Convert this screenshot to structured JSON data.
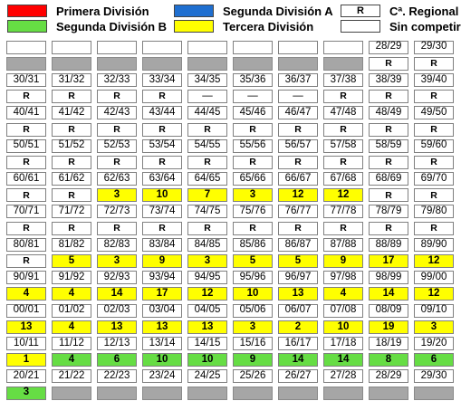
{
  "legend": {
    "primera": {
      "label": "Primera División",
      "color": "#ff0000"
    },
    "segunda_a": {
      "label": "Segunda División A",
      "color": "#1f6fd0"
    },
    "regional": {
      "label": "Cª. Regional",
      "swatch_text": "R"
    },
    "segunda_b": {
      "label": "Segunda División B",
      "color": "#66dd44"
    },
    "tercera": {
      "label": "Tercera División",
      "color": "#ffff00"
    },
    "sin_competir": {
      "label": "Sin competir"
    }
  },
  "rows": [
    [
      {
        "t": "",
        "c": "w"
      },
      {
        "t": "",
        "c": "w"
      },
      {
        "t": "",
        "c": "w"
      },
      {
        "t": "",
        "c": "w"
      },
      {
        "t": "",
        "c": "w"
      },
      {
        "t": "",
        "c": "w"
      },
      {
        "t": "",
        "c": "w"
      },
      {
        "t": "",
        "c": "w"
      },
      {
        "t": "28/29",
        "c": "w"
      },
      {
        "t": "29/30",
        "c": "w"
      }
    ],
    [
      {
        "t": "",
        "c": "g"
      },
      {
        "t": "",
        "c": "g"
      },
      {
        "t": "",
        "c": "g"
      },
      {
        "t": "",
        "c": "g"
      },
      {
        "t": "",
        "c": "g"
      },
      {
        "t": "",
        "c": "g"
      },
      {
        "t": "",
        "c": "g"
      },
      {
        "t": "",
        "c": "g"
      },
      {
        "t": "R",
        "c": "r"
      },
      {
        "t": "R",
        "c": "r"
      }
    ],
    [
      {
        "t": "30/31",
        "c": "w"
      },
      {
        "t": "31/32",
        "c": "w"
      },
      {
        "t": "32/33",
        "c": "w"
      },
      {
        "t": "33/34",
        "c": "w"
      },
      {
        "t": "34/35",
        "c": "w"
      },
      {
        "t": "35/36",
        "c": "w"
      },
      {
        "t": "36/37",
        "c": "w"
      },
      {
        "t": "37/38",
        "c": "w"
      },
      {
        "t": "38/39",
        "c": "w"
      },
      {
        "t": "39/40",
        "c": "w"
      }
    ],
    [
      {
        "t": "R",
        "c": "r"
      },
      {
        "t": "R",
        "c": "r"
      },
      {
        "t": "R",
        "c": "r"
      },
      {
        "t": "R",
        "c": "r"
      },
      {
        "t": "—",
        "c": "w"
      },
      {
        "t": "—",
        "c": "w"
      },
      {
        "t": "—",
        "c": "w"
      },
      {
        "t": "R",
        "c": "r"
      },
      {
        "t": "R",
        "c": "r"
      },
      {
        "t": "R",
        "c": "r"
      }
    ],
    [
      {
        "t": "40/41",
        "c": "w"
      },
      {
        "t": "41/42",
        "c": "w"
      },
      {
        "t": "42/43",
        "c": "w"
      },
      {
        "t": "43/44",
        "c": "w"
      },
      {
        "t": "44/45",
        "c": "w"
      },
      {
        "t": "45/46",
        "c": "w"
      },
      {
        "t": "46/47",
        "c": "w"
      },
      {
        "t": "47/48",
        "c": "w"
      },
      {
        "t": "48/49",
        "c": "w"
      },
      {
        "t": "49/50",
        "c": "w"
      }
    ],
    [
      {
        "t": "R",
        "c": "r"
      },
      {
        "t": "R",
        "c": "r"
      },
      {
        "t": "R",
        "c": "r"
      },
      {
        "t": "R",
        "c": "r"
      },
      {
        "t": "R",
        "c": "r"
      },
      {
        "t": "R",
        "c": "r"
      },
      {
        "t": "R",
        "c": "r"
      },
      {
        "t": "R",
        "c": "r"
      },
      {
        "t": "R",
        "c": "r"
      },
      {
        "t": "R",
        "c": "r"
      }
    ],
    [
      {
        "t": "50/51",
        "c": "w"
      },
      {
        "t": "51/52",
        "c": "w"
      },
      {
        "t": "52/53",
        "c": "w"
      },
      {
        "t": "53/54",
        "c": "w"
      },
      {
        "t": "54/55",
        "c": "w"
      },
      {
        "t": "55/56",
        "c": "w"
      },
      {
        "t": "56/57",
        "c": "w"
      },
      {
        "t": "57/58",
        "c": "w"
      },
      {
        "t": "58/59",
        "c": "w"
      },
      {
        "t": "59/60",
        "c": "w"
      }
    ],
    [
      {
        "t": "R",
        "c": "r"
      },
      {
        "t": "R",
        "c": "r"
      },
      {
        "t": "R",
        "c": "r"
      },
      {
        "t": "R",
        "c": "r"
      },
      {
        "t": "R",
        "c": "r"
      },
      {
        "t": "R",
        "c": "r"
      },
      {
        "t": "R",
        "c": "r"
      },
      {
        "t": "R",
        "c": "r"
      },
      {
        "t": "R",
        "c": "r"
      },
      {
        "t": "R",
        "c": "r"
      }
    ],
    [
      {
        "t": "60/61",
        "c": "w"
      },
      {
        "t": "61/62",
        "c": "w"
      },
      {
        "t": "62/63",
        "c": "w"
      },
      {
        "t": "63/64",
        "c": "w"
      },
      {
        "t": "64/65",
        "c": "w"
      },
      {
        "t": "65/66",
        "c": "w"
      },
      {
        "t": "66/67",
        "c": "w"
      },
      {
        "t": "67/68",
        "c": "w"
      },
      {
        "t": "68/69",
        "c": "w"
      },
      {
        "t": "69/70",
        "c": "w"
      }
    ],
    [
      {
        "t": "R",
        "c": "r"
      },
      {
        "t": "R",
        "c": "r"
      },
      {
        "t": "3",
        "c": "y"
      },
      {
        "t": "10",
        "c": "y"
      },
      {
        "t": "7",
        "c": "y"
      },
      {
        "t": "3",
        "c": "y"
      },
      {
        "t": "12",
        "c": "y"
      },
      {
        "t": "12",
        "c": "y"
      },
      {
        "t": "R",
        "c": "r"
      },
      {
        "t": "R",
        "c": "r"
      }
    ],
    [
      {
        "t": "70/71",
        "c": "w"
      },
      {
        "t": "71/72",
        "c": "w"
      },
      {
        "t": "72/73",
        "c": "w"
      },
      {
        "t": "73/74",
        "c": "w"
      },
      {
        "t": "74/75",
        "c": "w"
      },
      {
        "t": "75/76",
        "c": "w"
      },
      {
        "t": "76/77",
        "c": "w"
      },
      {
        "t": "77/78",
        "c": "w"
      },
      {
        "t": "78/79",
        "c": "w"
      },
      {
        "t": "79/80",
        "c": "w"
      }
    ],
    [
      {
        "t": "R",
        "c": "r"
      },
      {
        "t": "R",
        "c": "r"
      },
      {
        "t": "R",
        "c": "r"
      },
      {
        "t": "R",
        "c": "r"
      },
      {
        "t": "R",
        "c": "r"
      },
      {
        "t": "R",
        "c": "r"
      },
      {
        "t": "R",
        "c": "r"
      },
      {
        "t": "R",
        "c": "r"
      },
      {
        "t": "R",
        "c": "r"
      },
      {
        "t": "R",
        "c": "r"
      }
    ],
    [
      {
        "t": "80/81",
        "c": "w"
      },
      {
        "t": "81/82",
        "c": "w"
      },
      {
        "t": "82/83",
        "c": "w"
      },
      {
        "t": "83/84",
        "c": "w"
      },
      {
        "t": "84/85",
        "c": "w"
      },
      {
        "t": "85/86",
        "c": "w"
      },
      {
        "t": "86/87",
        "c": "w"
      },
      {
        "t": "87/88",
        "c": "w"
      },
      {
        "t": "88/89",
        "c": "w"
      },
      {
        "t": "89/90",
        "c": "w"
      }
    ],
    [
      {
        "t": "R",
        "c": "r"
      },
      {
        "t": "5",
        "c": "y"
      },
      {
        "t": "3",
        "c": "y"
      },
      {
        "t": "9",
        "c": "y"
      },
      {
        "t": "3",
        "c": "y"
      },
      {
        "t": "5",
        "c": "y"
      },
      {
        "t": "5",
        "c": "y"
      },
      {
        "t": "9",
        "c": "y"
      },
      {
        "t": "17",
        "c": "y"
      },
      {
        "t": "12",
        "c": "y"
      }
    ],
    [
      {
        "t": "90/91",
        "c": "w"
      },
      {
        "t": "91/92",
        "c": "w"
      },
      {
        "t": "92/93",
        "c": "w"
      },
      {
        "t": "93/94",
        "c": "w"
      },
      {
        "t": "94/95",
        "c": "w"
      },
      {
        "t": "95/96",
        "c": "w"
      },
      {
        "t": "96/97",
        "c": "w"
      },
      {
        "t": "97/98",
        "c": "w"
      },
      {
        "t": "98/99",
        "c": "w"
      },
      {
        "t": "99/00",
        "c": "w"
      }
    ],
    [
      {
        "t": "4",
        "c": "y"
      },
      {
        "t": "4",
        "c": "y"
      },
      {
        "t": "14",
        "c": "y"
      },
      {
        "t": "17",
        "c": "y"
      },
      {
        "t": "12",
        "c": "y"
      },
      {
        "t": "10",
        "c": "y"
      },
      {
        "t": "13",
        "c": "y"
      },
      {
        "t": "4",
        "c": "y"
      },
      {
        "t": "14",
        "c": "y"
      },
      {
        "t": "12",
        "c": "y"
      }
    ],
    [
      {
        "t": "00/01",
        "c": "w"
      },
      {
        "t": "01/02",
        "c": "w"
      },
      {
        "t": "02/03",
        "c": "w"
      },
      {
        "t": "03/04",
        "c": "w"
      },
      {
        "t": "04/05",
        "c": "w"
      },
      {
        "t": "05/06",
        "c": "w"
      },
      {
        "t": "06/07",
        "c": "w"
      },
      {
        "t": "07/08",
        "c": "w"
      },
      {
        "t": "08/09",
        "c": "w"
      },
      {
        "t": "09/10",
        "c": "w"
      }
    ],
    [
      {
        "t": "13",
        "c": "y"
      },
      {
        "t": "4",
        "c": "y"
      },
      {
        "t": "13",
        "c": "y"
      },
      {
        "t": "13",
        "c": "y"
      },
      {
        "t": "13",
        "c": "y"
      },
      {
        "t": "3",
        "c": "y"
      },
      {
        "t": "2",
        "c": "y"
      },
      {
        "t": "10",
        "c": "y"
      },
      {
        "t": "19",
        "c": "y"
      },
      {
        "t": "3",
        "c": "y"
      }
    ],
    [
      {
        "t": "10/11",
        "c": "w"
      },
      {
        "t": "11/12",
        "c": "w"
      },
      {
        "t": "12/13",
        "c": "w"
      },
      {
        "t": "13/14",
        "c": "w"
      },
      {
        "t": "14/15",
        "c": "w"
      },
      {
        "t": "15/16",
        "c": "w"
      },
      {
        "t": "16/17",
        "c": "w"
      },
      {
        "t": "17/18",
        "c": "w"
      },
      {
        "t": "18/19",
        "c": "w"
      },
      {
        "t": "19/20",
        "c": "w"
      }
    ],
    [
      {
        "t": "1",
        "c": "y"
      },
      {
        "t": "4",
        "c": "gr"
      },
      {
        "t": "6",
        "c": "gr"
      },
      {
        "t": "10",
        "c": "gr"
      },
      {
        "t": "10",
        "c": "gr"
      },
      {
        "t": "9",
        "c": "gr"
      },
      {
        "t": "14",
        "c": "gr"
      },
      {
        "t": "14",
        "c": "gr"
      },
      {
        "t": "8",
        "c": "gr"
      },
      {
        "t": "6",
        "c": "gr"
      }
    ],
    [
      {
        "t": "20/21",
        "c": "w"
      },
      {
        "t": "21/22",
        "c": "w"
      },
      {
        "t": "22/23",
        "c": "w"
      },
      {
        "t": "23/24",
        "c": "w"
      },
      {
        "t": "24/25",
        "c": "w"
      },
      {
        "t": "25/26",
        "c": "w"
      },
      {
        "t": "26/27",
        "c": "w"
      },
      {
        "t": "27/28",
        "c": "w"
      },
      {
        "t": "28/29",
        "c": "w"
      },
      {
        "t": "29/30",
        "c": "w"
      }
    ],
    [
      {
        "t": "3",
        "c": "gr"
      },
      {
        "t": "",
        "c": "g"
      },
      {
        "t": "",
        "c": "g"
      },
      {
        "t": "",
        "c": "g"
      },
      {
        "t": "",
        "c": "g"
      },
      {
        "t": "",
        "c": "g"
      },
      {
        "t": "",
        "c": "g"
      },
      {
        "t": "",
        "c": "g"
      },
      {
        "t": "",
        "c": "g"
      },
      {
        "t": "",
        "c": "g"
      }
    ]
  ]
}
